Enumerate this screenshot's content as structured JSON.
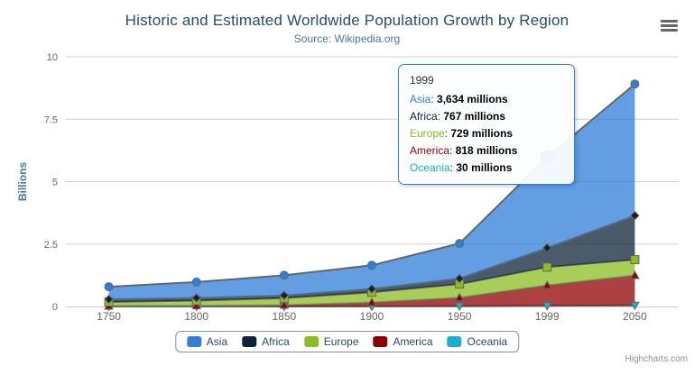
{
  "chart": {
    "title": "Historic and Estimated Worldwide Population Growth by Region",
    "subtitle": "Source: Wikipedia.org",
    "credits": "Highcharts.com",
    "context_menu_icon": "hamburger-icon"
  },
  "chart_data": {
    "type": "area",
    "stacking": "normal",
    "title": "Historic and Estimated Worldwide Population Growth by Region",
    "subtitle": "Source: Wikipedia.org",
    "xlabel": "",
    "ylabel": "Billions",
    "categories": [
      "1750",
      "1800",
      "1850",
      "1900",
      "1950",
      "1999",
      "2050"
    ],
    "values_unit": "millions",
    "yticks": [
      0,
      2.5,
      5,
      7.5,
      10
    ],
    "ylim": [
      0,
      10
    ],
    "grid": true,
    "legend_position": "bottom",
    "series": [
      {
        "name": "Asia",
        "color": "#2f7ed8",
        "marker": "circle",
        "values": [
          502,
          635,
          809,
          947,
          1402,
          3634,
          5268
        ]
      },
      {
        "name": "Africa",
        "color": "#0d233a",
        "marker": "diamond",
        "values": [
          106,
          107,
          111,
          133,
          221,
          767,
          1766
        ]
      },
      {
        "name": "Europe",
        "color": "#8bbc21",
        "marker": "square",
        "values": [
          163,
          203,
          276,
          408,
          547,
          729,
          628
        ]
      },
      {
        "name": "America",
        "color": "#910000",
        "marker": "triangle",
        "values": [
          18,
          31,
          54,
          156,
          339,
          818,
          1201
        ]
      },
      {
        "name": "Oceania",
        "color": "#1aadce",
        "marker": "triangle-down",
        "values": [
          2,
          2,
          2,
          6,
          13,
          30,
          46
        ]
      }
    ],
    "stack_order_top_to_bottom": [
      "Asia",
      "Africa",
      "Europe",
      "America",
      "Oceania"
    ]
  },
  "tooltip": {
    "header": "1999",
    "rows": [
      {
        "name": "Asia",
        "value": "3,634 millions",
        "color": "#2f7ed8"
      },
      {
        "name": "Africa",
        "value": "767 millions",
        "color": "#0d233a"
      },
      {
        "name": "Europe",
        "value": "729 millions",
        "color": "#8bbc21"
      },
      {
        "name": "America",
        "value": "818 millions",
        "color": "#910000"
      },
      {
        "name": "Oceania",
        "value": "30 millions",
        "color": "#1aadce"
      }
    ]
  },
  "hover": {
    "series": "Asia",
    "category": "1999"
  },
  "colors": {
    "title": "#274b6d",
    "subtitle": "#4d759e",
    "axis_labels": "#666666",
    "y_axis_title": "#4d759e",
    "series_line": "#666666",
    "gridline": "#d0d0d0",
    "axis_line": "#c0d0e0",
    "legend_text": "#274b6d",
    "credits_text": "#909090",
    "fill_opacity": 0.75
  }
}
